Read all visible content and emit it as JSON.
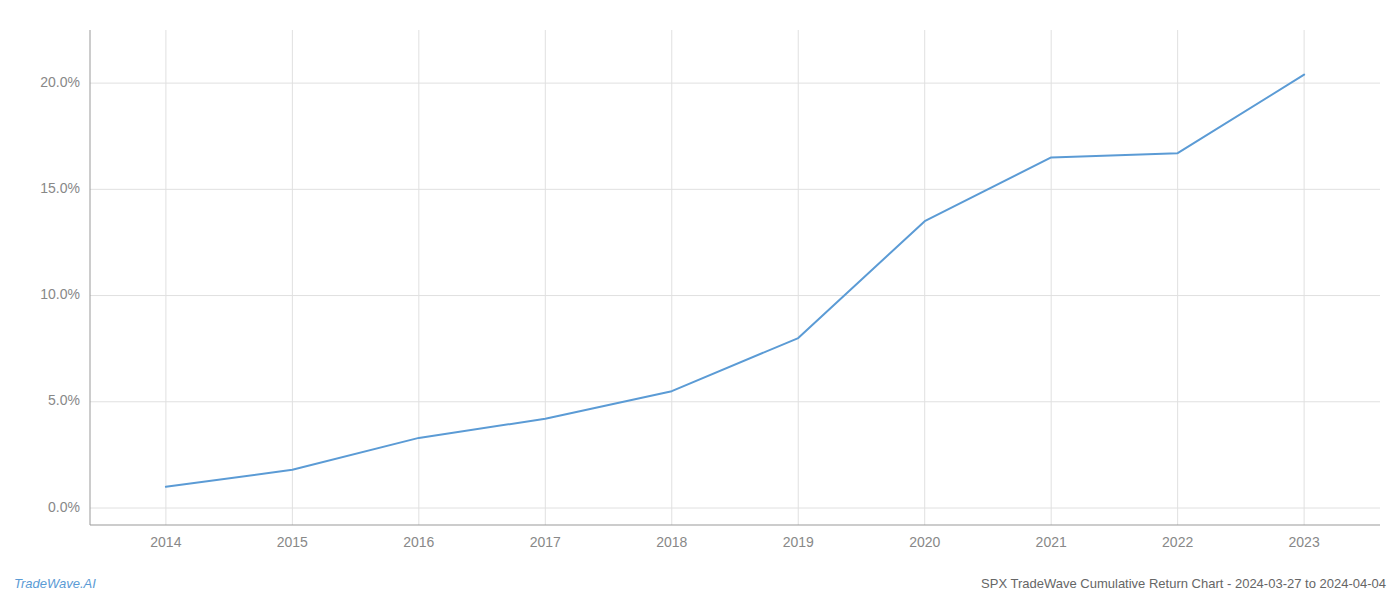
{
  "chart_data": {
    "type": "line",
    "title": "SPX TradeWave Cumulative Return Chart - 2024-03-27 to 2024-04-04",
    "annotations": [
      "TradeWave.AI"
    ],
    "x": [
      2014,
      2015,
      2016,
      2017,
      2018,
      2019,
      2020,
      2021,
      2022,
      2023
    ],
    "values": [
      0.01,
      0.018,
      0.033,
      0.042,
      0.055,
      0.08,
      0.135,
      0.165,
      0.167,
      0.204
    ],
    "color": "#5b9bd5",
    "xlim": [
      2013.4,
      2023.6
    ],
    "xticks": [
      2014,
      2015,
      2016,
      2017,
      2018,
      2019,
      2020,
      2021,
      2022,
      2023
    ],
    "ylim": [
      -0.008,
      0.225
    ],
    "yticks": [
      {
        "value": 0.0,
        "label": "0.0%"
      },
      {
        "value": 0.05,
        "label": "5.0%"
      },
      {
        "value": 0.1,
        "label": "10.0%"
      },
      {
        "value": 0.15,
        "label": "15.0%"
      },
      {
        "value": 0.2,
        "label": "20.0%"
      }
    ],
    "grid": true
  }
}
